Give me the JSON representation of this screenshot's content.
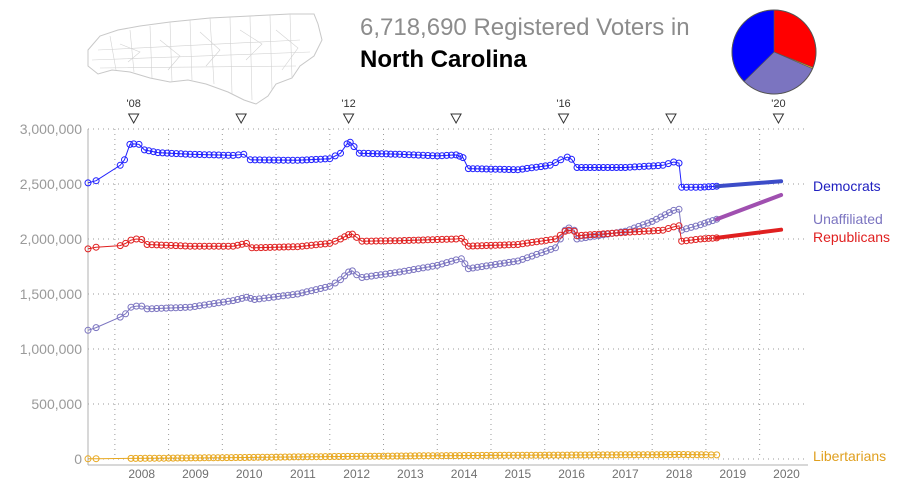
{
  "header": {
    "count": "6,718,690",
    "title_rest": "Registered Voters in",
    "state": "North Carolina"
  },
  "chart_data": {
    "type": "line",
    "xlim": [
      2007.5,
      2020.9
    ],
    "ylim": [
      0,
      3000000
    ],
    "y_ticks": [
      0,
      500000,
      1000000,
      1500000,
      2000000,
      2500000,
      3000000
    ],
    "y_tick_labels": [
      "0",
      "500,000",
      "1,000,000",
      "1,500,000",
      "2,000,000",
      "2,500,000",
      "3,000,000"
    ],
    "x_tick_labels": [
      {
        "x": 2008.5,
        "label": "2008"
      },
      {
        "x": 2009.5,
        "label": "2009"
      },
      {
        "x": 2010.5,
        "label": "2010"
      },
      {
        "x": 2011.5,
        "label": "2011"
      },
      {
        "x": 2012.5,
        "label": "2012"
      },
      {
        "x": 2013.5,
        "label": "2013"
      },
      {
        "x": 2014.5,
        "label": "2014"
      },
      {
        "x": 2015.5,
        "label": "2015"
      },
      {
        "x": 2016.5,
        "label": "2016"
      },
      {
        "x": 2017.5,
        "label": "2017"
      },
      {
        "x": 2018.5,
        "label": "2018"
      },
      {
        "x": 2019.5,
        "label": "2019"
      },
      {
        "x": 2020.5,
        "label": "2020"
      }
    ],
    "elections": [
      {
        "x": 2008.35,
        "label": "'08"
      },
      {
        "x": 2010.35,
        "label": ""
      },
      {
        "x": 2012.35,
        "label": "'12"
      },
      {
        "x": 2014.35,
        "label": ""
      },
      {
        "x": 2016.35,
        "label": "'16"
      },
      {
        "x": 2018.35,
        "label": ""
      },
      {
        "x": 2020.35,
        "label": "'20"
      }
    ],
    "grid": true,
    "series": [
      {
        "name": "Democrats",
        "color": "#2020ff",
        "label_color": "#2020c0",
        "trend_color": "#3c4cc8",
        "points": [
          [
            2007.5,
            2510000
          ],
          [
            2007.65,
            2530000
          ],
          [
            2008.1,
            2670000
          ],
          [
            2008.18,
            2720000
          ],
          [
            2008.28,
            2860000
          ],
          [
            2008.35,
            2865000
          ],
          [
            2008.45,
            2860000
          ],
          [
            2008.55,
            2810000
          ],
          [
            2008.8,
            2785000
          ],
          [
            2009.4,
            2770000
          ],
          [
            2010.2,
            2760000
          ],
          [
            2010.4,
            2770000
          ],
          [
            2010.52,
            2720000
          ],
          [
            2011.4,
            2715000
          ],
          [
            2012.0,
            2730000
          ],
          [
            2012.2,
            2780000
          ],
          [
            2012.32,
            2865000
          ],
          [
            2012.38,
            2880000
          ],
          [
            2012.45,
            2840000
          ],
          [
            2012.55,
            2780000
          ],
          [
            2013.3,
            2770000
          ],
          [
            2014.0,
            2755000
          ],
          [
            2014.35,
            2765000
          ],
          [
            2014.48,
            2740000
          ],
          [
            2014.58,
            2640000
          ],
          [
            2015.5,
            2630000
          ],
          [
            2016.1,
            2670000
          ],
          [
            2016.3,
            2720000
          ],
          [
            2016.42,
            2745000
          ],
          [
            2016.5,
            2725000
          ],
          [
            2016.6,
            2650000
          ],
          [
            2017.5,
            2650000
          ],
          [
            2018.2,
            2670000
          ],
          [
            2018.4,
            2700000
          ],
          [
            2018.5,
            2690000
          ],
          [
            2018.55,
            2470000
          ],
          [
            2018.9,
            2470000
          ],
          [
            2019.2,
            2480000
          ]
        ],
        "trend": [
          [
            2019.2,
            2480000
          ],
          [
            2020.4,
            2525000
          ]
        ],
        "label_pos": 2500000
      },
      {
        "name": "Unaffiliated",
        "color": "#7b74c0",
        "label_color": "#7b74c0",
        "trend_color": "#a050b0",
        "points": [
          [
            2007.5,
            1170000
          ],
          [
            2007.65,
            1195000
          ],
          [
            2008.1,
            1290000
          ],
          [
            2008.2,
            1320000
          ],
          [
            2008.3,
            1380000
          ],
          [
            2008.4,
            1390000
          ],
          [
            2008.5,
            1390000
          ],
          [
            2008.6,
            1365000
          ],
          [
            2009.4,
            1380000
          ],
          [
            2010.2,
            1440000
          ],
          [
            2010.45,
            1470000
          ],
          [
            2010.6,
            1450000
          ],
          [
            2011.4,
            1500000
          ],
          [
            2012.0,
            1570000
          ],
          [
            2012.2,
            1630000
          ],
          [
            2012.35,
            1700000
          ],
          [
            2012.42,
            1710000
          ],
          [
            2012.5,
            1675000
          ],
          [
            2012.6,
            1650000
          ],
          [
            2013.3,
            1700000
          ],
          [
            2014.0,
            1760000
          ],
          [
            2014.35,
            1810000
          ],
          [
            2014.45,
            1820000
          ],
          [
            2014.58,
            1730000
          ],
          [
            2015.5,
            1800000
          ],
          [
            2016.2,
            1920000
          ],
          [
            2016.38,
            2080000
          ],
          [
            2016.45,
            2100000
          ],
          [
            2016.55,
            2080000
          ],
          [
            2016.6,
            2000000
          ],
          [
            2017.5,
            2070000
          ],
          [
            2018.0,
            2160000
          ],
          [
            2018.4,
            2260000
          ],
          [
            2018.5,
            2270000
          ],
          [
            2018.55,
            2080000
          ],
          [
            2018.9,
            2130000
          ],
          [
            2019.2,
            2180000
          ]
        ],
        "trend": [
          [
            2019.2,
            2180000
          ],
          [
            2020.4,
            2400000
          ]
        ],
        "label_pos": 2170000
      },
      {
        "name": "Republicans",
        "color": "#e02020",
        "label_color": "#e02020",
        "trend_color": "#e02020",
        "points": [
          [
            2007.5,
            1910000
          ],
          [
            2007.65,
            1925000
          ],
          [
            2008.1,
            1940000
          ],
          [
            2008.2,
            1960000
          ],
          [
            2008.3,
            1990000
          ],
          [
            2008.4,
            2000000
          ],
          [
            2008.5,
            1995000
          ],
          [
            2008.6,
            1950000
          ],
          [
            2009.4,
            1935000
          ],
          [
            2010.2,
            1935000
          ],
          [
            2010.45,
            1960000
          ],
          [
            2010.55,
            1920000
          ],
          [
            2011.4,
            1930000
          ],
          [
            2012.0,
            1960000
          ],
          [
            2012.2,
            2000000
          ],
          [
            2012.35,
            2040000
          ],
          [
            2012.42,
            2045000
          ],
          [
            2012.5,
            2015000
          ],
          [
            2012.6,
            1980000
          ],
          [
            2013.3,
            1985000
          ],
          [
            2014.0,
            1995000
          ],
          [
            2014.35,
            2000000
          ],
          [
            2014.45,
            2005000
          ],
          [
            2014.58,
            1935000
          ],
          [
            2015.5,
            1950000
          ],
          [
            2016.2,
            2000000
          ],
          [
            2016.38,
            2070000
          ],
          [
            2016.45,
            2080000
          ],
          [
            2016.55,
            2070000
          ],
          [
            2016.6,
            2030000
          ],
          [
            2017.5,
            2060000
          ],
          [
            2018.2,
            2080000
          ],
          [
            2018.4,
            2110000
          ],
          [
            2018.5,
            2120000
          ],
          [
            2018.55,
            1980000
          ],
          [
            2018.9,
            2000000
          ],
          [
            2019.2,
            2010000
          ]
        ],
        "trend": [
          [
            2019.2,
            2010000
          ],
          [
            2020.4,
            2085000
          ]
        ],
        "label_pos": 2010000
      },
      {
        "name": "Libertarians",
        "color": "#e8a820",
        "label_color": "#e0a020",
        "trend_color": "#e8a820",
        "points": [
          [
            2007.5,
            2000
          ],
          [
            2007.65,
            3000
          ],
          [
            2008.3,
            5000
          ],
          [
            2009.0,
            8000
          ],
          [
            2010.0,
            12000
          ],
          [
            2011.0,
            17000
          ],
          [
            2012.0,
            22000
          ],
          [
            2013.0,
            26000
          ],
          [
            2014.0,
            30000
          ],
          [
            2015.0,
            33000
          ],
          [
            2016.0,
            35000
          ],
          [
            2017.0,
            37000
          ],
          [
            2018.0,
            39000
          ],
          [
            2018.5,
            41000
          ],
          [
            2019.0,
            38000
          ],
          [
            2019.2,
            37000
          ]
        ],
        "trend": [],
        "label_pos": 20000
      }
    ],
    "pie": [
      {
        "name": "Democrats",
        "value": 2510000,
        "color": "#0000ff"
      },
      {
        "name": "Republicans",
        "value": 2080000,
        "color": "#ff0000"
      },
      {
        "name": "Libertarians",
        "value": 38000,
        "color": "#e8a820"
      },
      {
        "name": "Unaffiliated",
        "value": 2090690,
        "color": "#7b74c0"
      }
    ]
  }
}
